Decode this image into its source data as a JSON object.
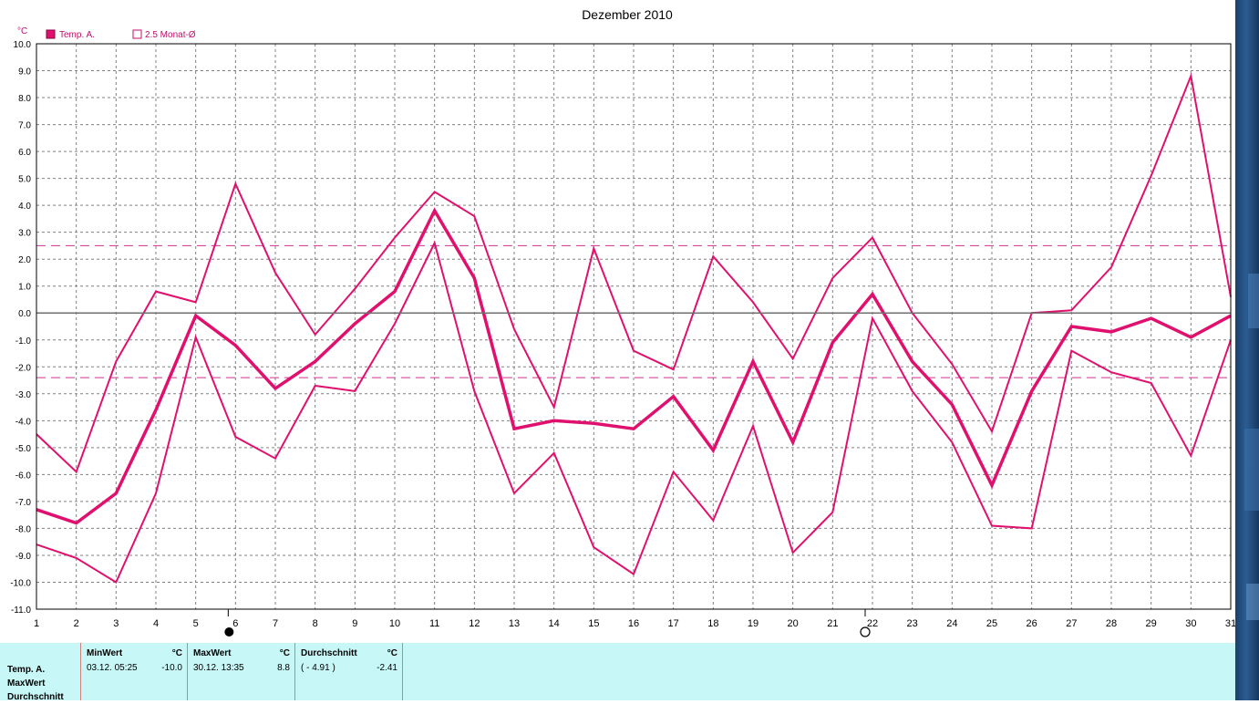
{
  "chart_data": {
    "type": "line",
    "title": "Dezember 2010",
    "unit_label": "°C",
    "legend": [
      {
        "label": "Temp. A.",
        "marker": "filled"
      },
      {
        "label": "2.5 Monat-Ø",
        "marker": "hollow"
      }
    ],
    "x": [
      1,
      2,
      3,
      4,
      5,
      6,
      7,
      8,
      9,
      10,
      11,
      12,
      13,
      14,
      15,
      16,
      17,
      18,
      19,
      20,
      21,
      22,
      23,
      24,
      25,
      26,
      27,
      28,
      29,
      30,
      31
    ],
    "ylim": [
      -11.0,
      10.0
    ],
    "yticks": [
      "10.0",
      "9.0",
      "8.0",
      "7.0",
      "6.0",
      "5.0",
      "4.0",
      "3.0",
      "2.0",
      "1.0",
      "0.0",
      "-1.0",
      "-2.0",
      "-3.0",
      "-4.0",
      "-5.0",
      "-6.0",
      "-7.0",
      "-8.0",
      "-9.0",
      "-10.0",
      "-11.0"
    ],
    "grid": true,
    "reference_lines": [
      2.5,
      -2.4
    ],
    "series": [
      {
        "role": "max",
        "values": [
          -4.5,
          -5.9,
          -1.8,
          0.8,
          0.4,
          4.8,
          1.5,
          -0.8,
          0.9,
          2.8,
          4.5,
          3.6,
          -0.6,
          -3.5,
          2.4,
          -1.4,
          -2.1,
          2.1,
          0.4,
          -1.7,
          1.3,
          2.8,
          0.0,
          -1.9,
          -4.4,
          0.0,
          0.1,
          1.7,
          5.1,
          8.8,
          0.6
        ]
      },
      {
        "role": "mean",
        "values": [
          -7.3,
          -7.8,
          -6.7,
          -3.6,
          -0.1,
          -1.2,
          -2.8,
          -1.8,
          -0.4,
          0.8,
          3.8,
          1.3,
          -4.3,
          -4.0,
          -4.1,
          -4.3,
          -3.1,
          -5.1,
          -1.8,
          -4.8,
          -1.1,
          0.7,
          -1.8,
          -3.4,
          -6.4,
          -2.9,
          -0.5,
          -0.7,
          -0.2,
          -0.9,
          -0.1
        ]
      },
      {
        "role": "min",
        "values": [
          -8.6,
          -9.1,
          -10.0,
          -6.7,
          -0.9,
          -4.6,
          -5.4,
          -2.7,
          -2.9,
          -0.4,
          2.6,
          -2.9,
          -6.7,
          -5.2,
          -8.7,
          -9.7,
          -5.9,
          -7.7,
          -4.2,
          -8.9,
          -7.4,
          -0.2,
          -2.9,
          -4.8,
          -7.9,
          -8.0,
          -1.4,
          -2.2,
          -2.6,
          -5.3,
          -1.0
        ]
      }
    ],
    "moon_markers": [
      {
        "x": 6,
        "phase": "full"
      },
      {
        "x": 22,
        "phase": "new"
      }
    ],
    "colors": {
      "series": "#e0116e",
      "reference": "#d0309a",
      "grid": "#808080",
      "zero": "#707070"
    }
  },
  "stats": {
    "row_labels": [
      "Temp. A.",
      "MaxWert",
      "Durchschnitt"
    ],
    "min": {
      "header": "MinWert",
      "unit": "°C",
      "datetime": "03.12.  05:25",
      "value": "-10.0"
    },
    "max": {
      "header": "MaxWert",
      "unit": "°C",
      "datetime": "30.12.  13:35",
      "value": "8.8"
    },
    "avg": {
      "header": "Durchschnitt",
      "unit": "°C",
      "extra": "( - 4.91 )",
      "value": "-2.41"
    }
  }
}
